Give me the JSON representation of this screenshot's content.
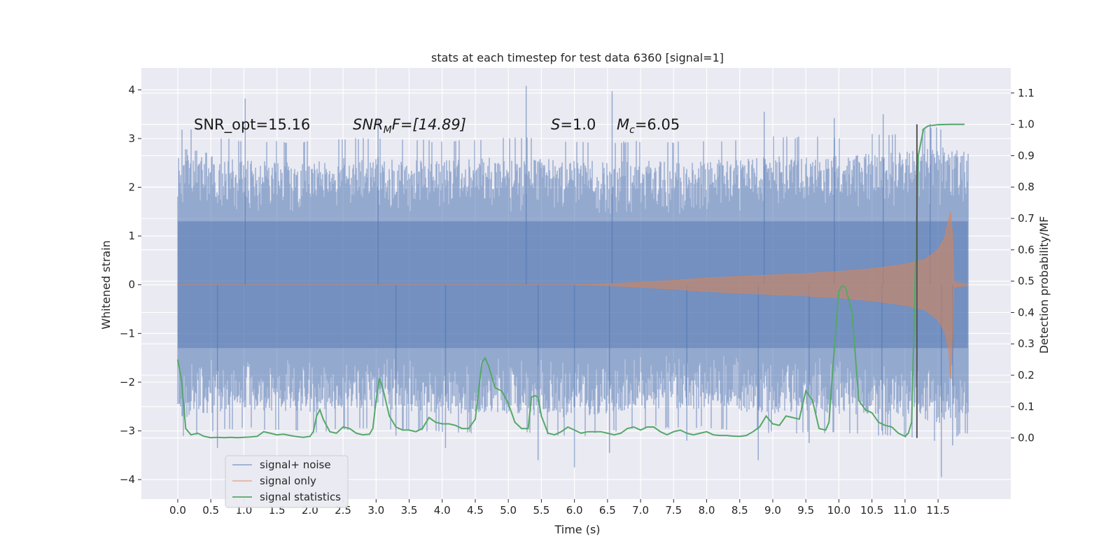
{
  "chart_data": {
    "type": "line",
    "title": "stats at each timestep for test data 6360 [signal=1]",
    "xlabel": "Time (s)",
    "ylabel": "Whitened strain",
    "y2label": "Detection probability/MF",
    "xlim": [
      -0.55,
      12.6
    ],
    "ylim": [
      -4.4,
      4.45
    ],
    "y2lim": [
      -0.195,
      1.18
    ],
    "x_ticks": [
      0.0,
      0.5,
      1.0,
      1.5,
      2.0,
      2.5,
      3.0,
      3.5,
      4.0,
      4.5,
      5.0,
      5.5,
      6.0,
      6.5,
      7.0,
      7.5,
      8.0,
      8.5,
      9.0,
      9.5,
      10.0,
      10.5,
      11.0,
      11.5
    ],
    "x_tick_labels": [
      "0.0",
      "0.5",
      "1.0",
      "1.5",
      "2.0",
      "2.5",
      "3.0",
      "3.5",
      "4.0",
      "4.5",
      "5.0",
      "5.5",
      "6.0",
      "6.5",
      "7.0",
      "7.5",
      "8.0",
      "8.5",
      "9.0",
      "9.5",
      "10.0",
      "10.5",
      "11.0",
      "11.5"
    ],
    "y_ticks": [
      4,
      3,
      2,
      1,
      0,
      -1,
      -2,
      -3,
      -4
    ],
    "y_tick_labels": [
      "4",
      "3",
      "2",
      "1",
      "0",
      "−1",
      "−2",
      "−3",
      "−4"
    ],
    "y2_ticks": [
      1.1,
      1.0,
      0.9,
      0.8,
      0.7,
      0.6,
      0.5,
      0.4,
      0.3,
      0.2,
      0.1,
      0.0
    ],
    "y2_tick_labels": [
      "1.1",
      "1.0",
      "0.9",
      "0.8",
      "0.7",
      "0.6",
      "0.5",
      "0.4",
      "0.3",
      "0.2",
      "0.1",
      "0.0"
    ],
    "grid": true,
    "legend_position": "lower-left",
    "annotations": {
      "snr_opt": "SNR_opt=15.16",
      "snr_mf_main": "SNR",
      "snr_mf_sub": "M",
      "snr_mf_rest": "F=[14.89]",
      "s_sym": "S",
      "s_rest": "=1.0",
      "mc_sym": "M",
      "mc_sub": "c",
      "mc_rest": "=6.05"
    },
    "vertical_marker_x": 11.18,
    "series": [
      {
        "name": "signal+ noise",
        "axis": "left",
        "color": "#4c72b0",
        "envelope_upper": [
          [
            0.0,
            2.9
          ],
          [
            1.0,
            2.6
          ],
          [
            2.0,
            2.6
          ],
          [
            3.0,
            2.7
          ],
          [
            4.0,
            2.6
          ],
          [
            5.0,
            2.7
          ],
          [
            6.0,
            2.6
          ],
          [
            7.0,
            2.6
          ],
          [
            8.0,
            2.6
          ],
          [
            9.0,
            2.7
          ],
          [
            10.0,
            2.7
          ],
          [
            11.0,
            2.8
          ],
          [
            11.5,
            2.9
          ],
          [
            11.95,
            2.8
          ]
        ],
        "envelope_lower": [
          [
            0.0,
            -2.8
          ],
          [
            1.0,
            -2.6
          ],
          [
            2.0,
            -2.7
          ],
          [
            3.0,
            -2.6
          ],
          [
            4.0,
            -2.7
          ],
          [
            5.0,
            -2.7
          ],
          [
            6.0,
            -2.8
          ],
          [
            7.0,
            -2.6
          ],
          [
            8.0,
            -2.6
          ],
          [
            9.0,
            -2.7
          ],
          [
            10.0,
            -2.7
          ],
          [
            11.0,
            -2.8
          ],
          [
            11.5,
            -2.9
          ],
          [
            11.95,
            -2.7
          ]
        ],
        "peaks": [
          [
            1.02,
            3.82
          ],
          [
            5.27,
            4.08
          ],
          [
            6.57,
            3.97
          ],
          [
            11.38,
            3.3
          ],
          [
            3.03,
            3.4
          ],
          [
            8.87,
            3.55
          ],
          [
            9.93,
            3.42
          ],
          [
            10.67,
            3.5
          ],
          [
            6.0,
            -3.75
          ],
          [
            11.55,
            -3.95
          ],
          [
            4.05,
            -3.35
          ],
          [
            5.45,
            -3.6
          ],
          [
            8.78,
            -3.6
          ],
          [
            6.53,
            -3.45
          ],
          [
            9.55,
            -3.25
          ],
          [
            0.6,
            -3.35
          ],
          [
            11.72,
            -3.3
          ],
          [
            3.3,
            -3.1
          ],
          [
            7.7,
            -3.2
          ],
          [
            10.65,
            -3.0
          ]
        ]
      },
      {
        "name": "signal only",
        "axis": "left",
        "color": "#dd8452",
        "envelope_upper": [
          [
            0.0,
            0.0
          ],
          [
            6.0,
            0.0
          ],
          [
            6.5,
            0.02
          ],
          [
            7.0,
            0.05
          ],
          [
            7.5,
            0.09
          ],
          [
            8.0,
            0.14
          ],
          [
            8.5,
            0.17
          ],
          [
            9.0,
            0.2
          ],
          [
            9.5,
            0.23
          ],
          [
            10.0,
            0.27
          ],
          [
            10.5,
            0.33
          ],
          [
            11.0,
            0.42
          ],
          [
            11.3,
            0.52
          ],
          [
            11.5,
            0.72
          ],
          [
            11.6,
            0.97
          ],
          [
            11.66,
            1.35
          ],
          [
            11.69,
            1.5
          ],
          [
            11.72,
            1.0
          ],
          [
            11.74,
            0.05
          ],
          [
            11.95,
            0.02
          ]
        ],
        "envelope_lower": [
          [
            0.0,
            0.0
          ],
          [
            6.0,
            0.0
          ],
          [
            6.5,
            -0.02
          ],
          [
            7.0,
            -0.05
          ],
          [
            7.5,
            -0.09
          ],
          [
            8.0,
            -0.14
          ],
          [
            8.5,
            -0.17
          ],
          [
            9.0,
            -0.2
          ],
          [
            9.5,
            -0.23
          ],
          [
            10.0,
            -0.27
          ],
          [
            10.5,
            -0.33
          ],
          [
            11.0,
            -0.42
          ],
          [
            11.3,
            -0.52
          ],
          [
            11.5,
            -0.72
          ],
          [
            11.6,
            -0.97
          ],
          [
            11.66,
            -1.35
          ],
          [
            11.69,
            -1.95
          ],
          [
            11.72,
            -1.0
          ],
          [
            11.74,
            -0.05
          ],
          [
            11.95,
            -0.02
          ]
        ]
      },
      {
        "name": "signal statistics",
        "axis": "right",
        "color": "#55a868",
        "points": [
          [
            0.0,
            0.25
          ],
          [
            0.06,
            0.18
          ],
          [
            0.12,
            0.03
          ],
          [
            0.2,
            0.01
          ],
          [
            0.3,
            0.015
          ],
          [
            0.4,
            0.005
          ],
          [
            0.5,
            0.001
          ],
          [
            0.6,
            0.002
          ],
          [
            0.7,
            0.001
          ],
          [
            0.8,
            0.002
          ],
          [
            0.9,
            0.001
          ],
          [
            1.0,
            0.002
          ],
          [
            1.1,
            0.003
          ],
          [
            1.2,
            0.005
          ],
          [
            1.3,
            0.02
          ],
          [
            1.4,
            0.015
          ],
          [
            1.5,
            0.01
          ],
          [
            1.6,
            0.012
          ],
          [
            1.7,
            0.008
          ],
          [
            1.8,
            0.004
          ],
          [
            1.9,
            0.002
          ],
          [
            2.0,
            0.005
          ],
          [
            2.05,
            0.02
          ],
          [
            2.1,
            0.07
          ],
          [
            2.15,
            0.09
          ],
          [
            2.2,
            0.06
          ],
          [
            2.3,
            0.02
          ],
          [
            2.4,
            0.015
          ],
          [
            2.5,
            0.035
          ],
          [
            2.6,
            0.03
          ],
          [
            2.7,
            0.015
          ],
          [
            2.8,
            0.01
          ],
          [
            2.9,
            0.012
          ],
          [
            2.95,
            0.03
          ],
          [
            3.0,
            0.12
          ],
          [
            3.05,
            0.19
          ],
          [
            3.1,
            0.16
          ],
          [
            3.2,
            0.07
          ],
          [
            3.3,
            0.035
          ],
          [
            3.4,
            0.025
          ],
          [
            3.5,
            0.025
          ],
          [
            3.6,
            0.02
          ],
          [
            3.7,
            0.03
          ],
          [
            3.8,
            0.065
          ],
          [
            3.9,
            0.05
          ],
          [
            4.0,
            0.045
          ],
          [
            4.1,
            0.045
          ],
          [
            4.2,
            0.04
          ],
          [
            4.3,
            0.03
          ],
          [
            4.4,
            0.03
          ],
          [
            4.5,
            0.06
          ],
          [
            4.55,
            0.15
          ],
          [
            4.6,
            0.24
          ],
          [
            4.65,
            0.255
          ],
          [
            4.7,
            0.23
          ],
          [
            4.8,
            0.16
          ],
          [
            4.9,
            0.15
          ],
          [
            5.0,
            0.11
          ],
          [
            5.1,
            0.05
          ],
          [
            5.2,
            0.03
          ],
          [
            5.3,
            0.03
          ],
          [
            5.35,
            0.13
          ],
          [
            5.4,
            0.135
          ],
          [
            5.45,
            0.13
          ],
          [
            5.5,
            0.07
          ],
          [
            5.6,
            0.015
          ],
          [
            5.7,
            0.01
          ],
          [
            5.8,
            0.02
          ],
          [
            5.9,
            0.035
          ],
          [
            6.0,
            0.025
          ],
          [
            6.1,
            0.015
          ],
          [
            6.2,
            0.02
          ],
          [
            6.3,
            0.02
          ],
          [
            6.4,
            0.02
          ],
          [
            6.5,
            0.015
          ],
          [
            6.6,
            0.01
          ],
          [
            6.7,
            0.015
          ],
          [
            6.8,
            0.03
          ],
          [
            6.9,
            0.035
          ],
          [
            7.0,
            0.025
          ],
          [
            7.1,
            0.035
          ],
          [
            7.2,
            0.035
          ],
          [
            7.3,
            0.02
          ],
          [
            7.4,
            0.01
          ],
          [
            7.5,
            0.02
          ],
          [
            7.6,
            0.025
          ],
          [
            7.7,
            0.015
          ],
          [
            7.8,
            0.01
          ],
          [
            7.9,
            0.015
          ],
          [
            8.0,
            0.02
          ],
          [
            8.1,
            0.01
          ],
          [
            8.2,
            0.008
          ],
          [
            8.3,
            0.008
          ],
          [
            8.4,
            0.006
          ],
          [
            8.5,
            0.005
          ],
          [
            8.6,
            0.008
          ],
          [
            8.7,
            0.02
          ],
          [
            8.8,
            0.035
          ],
          [
            8.9,
            0.07
          ],
          [
            9.0,
            0.045
          ],
          [
            9.1,
            0.04
          ],
          [
            9.2,
            0.07
          ],
          [
            9.3,
            0.065
          ],
          [
            9.4,
            0.06
          ],
          [
            9.5,
            0.15
          ],
          [
            9.6,
            0.12
          ],
          [
            9.7,
            0.03
          ],
          [
            9.8,
            0.025
          ],
          [
            9.85,
            0.05
          ],
          [
            9.9,
            0.2
          ],
          [
            10.0,
            0.47
          ],
          [
            10.05,
            0.485
          ],
          [
            10.1,
            0.48
          ],
          [
            10.2,
            0.4
          ],
          [
            10.3,
            0.12
          ],
          [
            10.4,
            0.09
          ],
          [
            10.5,
            0.08
          ],
          [
            10.6,
            0.05
          ],
          [
            10.7,
            0.04
          ],
          [
            10.8,
            0.035
          ],
          [
            10.9,
            0.015
          ],
          [
            11.0,
            0.005
          ],
          [
            11.05,
            0.015
          ],
          [
            11.1,
            0.05
          ],
          [
            11.2,
            0.9
          ],
          [
            11.28,
            0.985
          ],
          [
            11.35,
            0.995
          ],
          [
            11.5,
            0.999
          ],
          [
            11.7,
            1.0
          ],
          [
            11.9,
            1.0
          ]
        ]
      }
    ]
  }
}
